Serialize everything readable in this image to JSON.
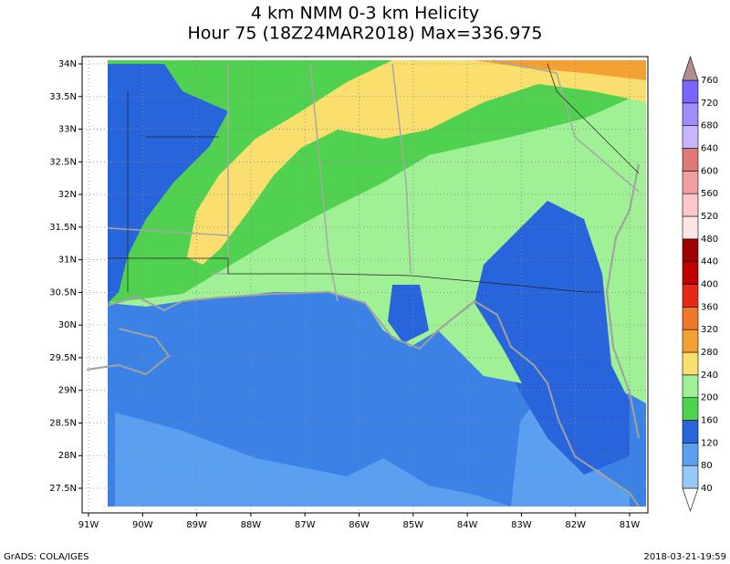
{
  "title": {
    "line1": "4 km NMM 0-3 km Helicity",
    "line2": "Hour 75 (18Z24MAR2018) Max=336.975"
  },
  "lat_labels": [
    "34N",
    "33.5N",
    "33N",
    "32.5N",
    "32N",
    "31.5N",
    "31N",
    "30.5N",
    "30N",
    "29.5N",
    "29N",
    "28.5N",
    "28N",
    "27.5N"
  ],
  "lon_labels": [
    "91W",
    "90W",
    "89W",
    "88W",
    "87W",
    "86W",
    "85W",
    "84W",
    "83W",
    "82W",
    "81W"
  ],
  "colorbar": {
    "labels": [
      40,
      80,
      120,
      160,
      200,
      240,
      280,
      320,
      360,
      400,
      440,
      480,
      520,
      560,
      600,
      640,
      680,
      720,
      760
    ],
    "colors": [
      "#ffffff",
      "#96c8fa",
      "#5a9ff0",
      "#2864dc",
      "#50d250",
      "#a0f096",
      "#fade6e",
      "#f5a032",
      "#f07828",
      "#e62814",
      "#c00000",
      "#a00000",
      "#ffe6e6",
      "#fac8c8",
      "#f0a0a0",
      "#e07878",
      "#c8b4ff",
      "#a08cff",
      "#7864ff",
      "#b48c8c"
    ]
  },
  "footer": {
    "left": "GrADS: COLA/IGES",
    "right": "2018-03-21-19:59"
  }
}
